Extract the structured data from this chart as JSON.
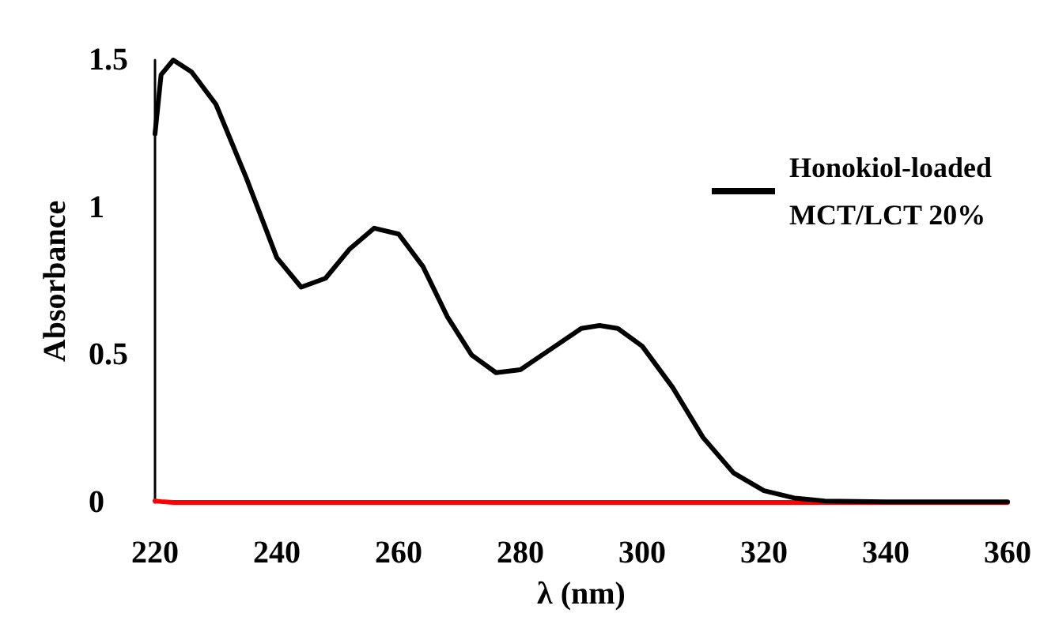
{
  "chart_data": {
    "type": "line",
    "xlabel": "λ (nm)",
    "ylabel": "Absorbance",
    "x": [
      220,
      221,
      223,
      226,
      230,
      235,
      240,
      244,
      248,
      252,
      256,
      260,
      264,
      268,
      272,
      276,
      280,
      285,
      290,
      293,
      296,
      300,
      305,
      310,
      315,
      320,
      325,
      330,
      340,
      360
    ],
    "series": [
      {
        "name": "Honokiol-loaded MCT/LCT 20%",
        "color": "#000000",
        "values": [
          1.25,
          1.45,
          1.5,
          1.46,
          1.35,
          1.1,
          0.83,
          0.73,
          0.76,
          0.86,
          0.93,
          0.91,
          0.8,
          0.63,
          0.5,
          0.44,
          0.45,
          0.52,
          0.59,
          0.6,
          0.59,
          0.53,
          0.39,
          0.22,
          0.1,
          0.04,
          0.015,
          0.005,
          0.002,
          0.002
        ]
      },
      {
        "color": "#ff0000",
        "values": [
          0.005,
          0.003,
          0,
          0,
          0,
          0,
          0,
          0,
          0,
          0,
          0,
          0,
          0,
          0,
          0,
          0,
          0,
          0,
          0,
          0,
          0,
          0,
          0,
          0,
          0,
          0,
          0,
          0,
          0,
          0
        ]
      }
    ],
    "xlim": [
      220,
      360
    ],
    "xticks": [
      220,
      240,
      260,
      280,
      300,
      320,
      340,
      360
    ],
    "ylim": [
      0,
      1.5
    ],
    "yticks": [
      0,
      0.5,
      1,
      1.5
    ],
    "grid": false,
    "legend": "top right",
    "marker": "none",
    "line_style": "solid"
  }
}
